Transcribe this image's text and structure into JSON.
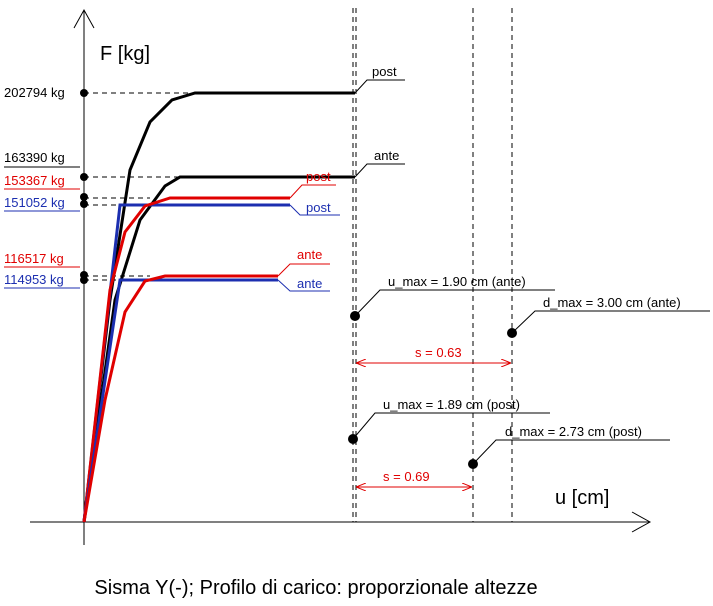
{
  "axes": {
    "y_label": "F [kg]",
    "x_label": "u [cm]"
  },
  "forces": [
    "202794 kg",
    "163390 kg",
    "153367 kg",
    "151052 kg",
    "116517 kg",
    "114953 kg"
  ],
  "curve_labels": [
    "post",
    "ante",
    "post",
    "post",
    "ante",
    "ante"
  ],
  "annotations": [
    "u_max = 1.90 cm (ante)",
    "d_max = 3.00 cm (ante)",
    "u_max = 1.89 cm (post)",
    "d_max = 2.73 cm (post)"
  ],
  "spacing": [
    "s = 0.63",
    "s = 0.69"
  ],
  "caption": "Sisma Y(-); Profilo di carico: proporzionale altezze"
}
